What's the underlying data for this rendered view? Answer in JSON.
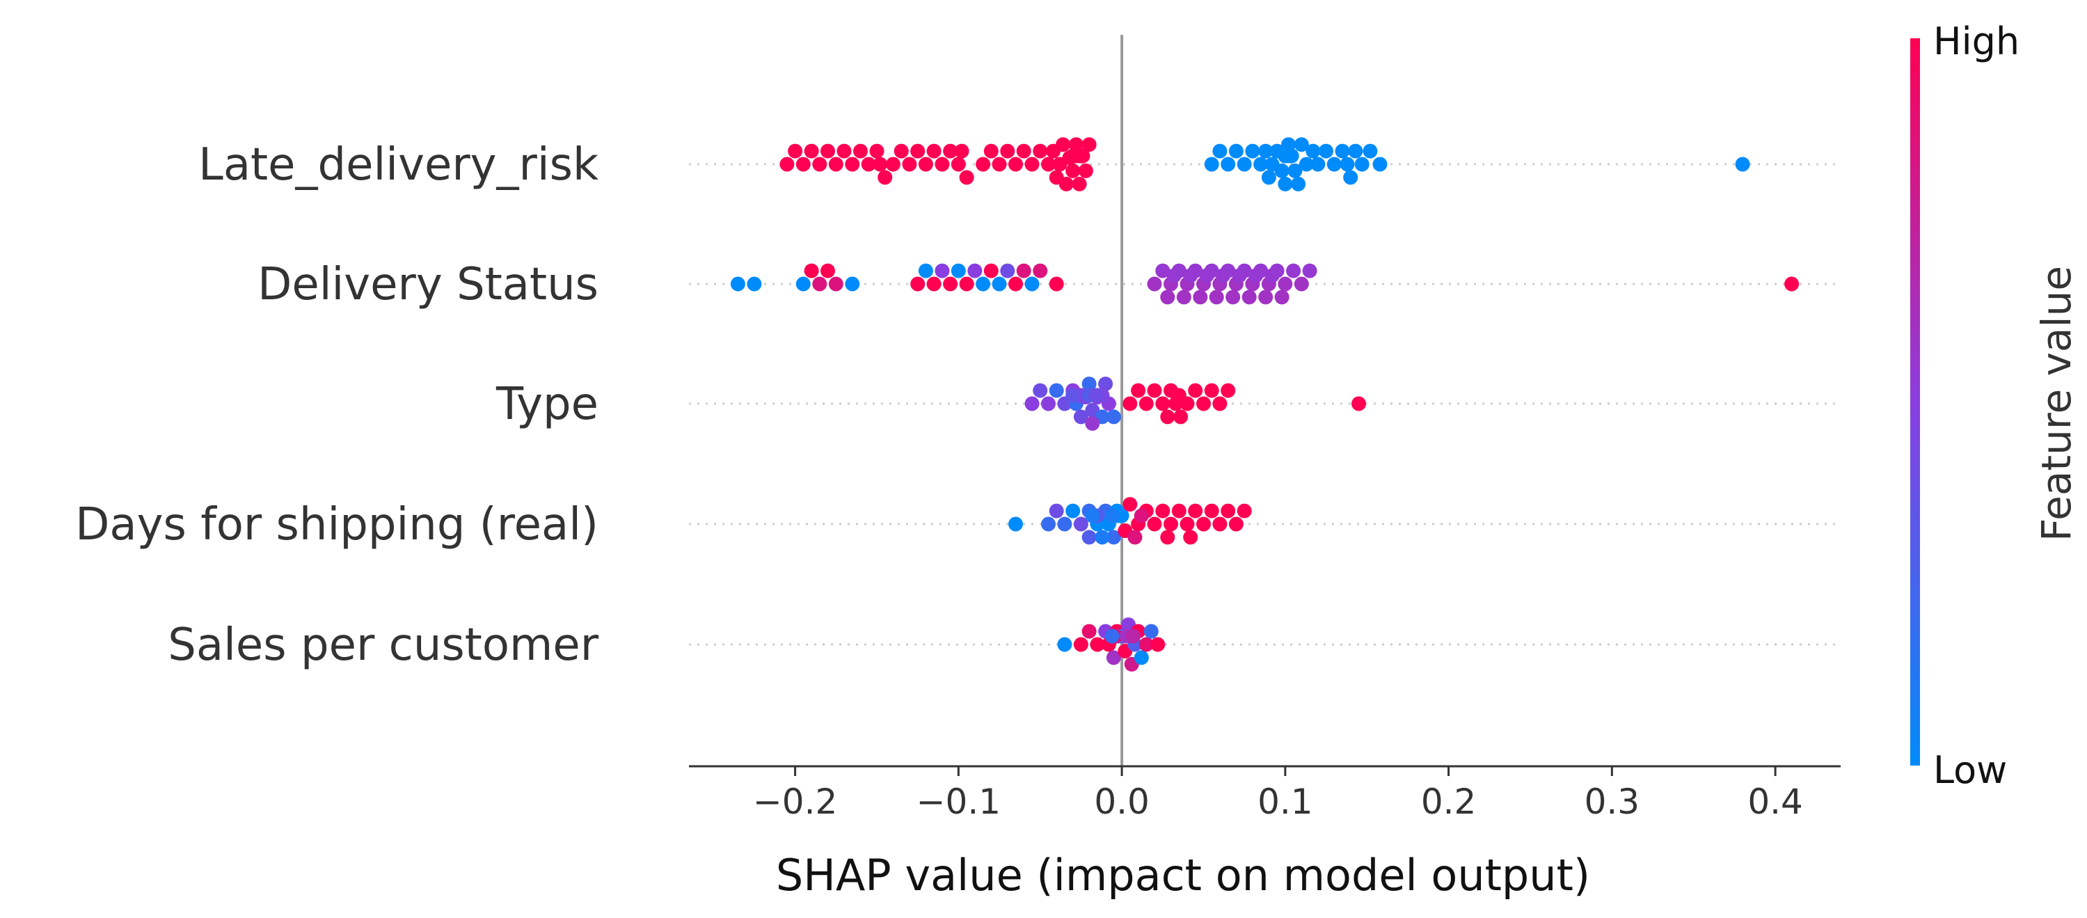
{
  "chart_data": {
    "type": "scatter",
    "subtype": "shap-beeswarm",
    "title": "",
    "xlabel": "SHAP value (impact on model output)",
    "xlim": [
      -0.265,
      0.44
    ],
    "xticks": [
      -0.2,
      -0.1,
      0.0,
      0.1,
      0.2,
      0.3,
      0.4
    ],
    "xtick_labels": [
      "−0.2",
      "−0.1",
      "0.0",
      "0.1",
      "0.2",
      "0.3",
      "0.4"
    ],
    "colorbar": {
      "title": "Feature value",
      "high_label": "High",
      "low_label": "Low",
      "high_color": "#ff0052",
      "low_color": "#008bfb"
    },
    "features": [
      {
        "name": "Late_delivery_risk",
        "points": [
          [
            -0.205,
            1
          ],
          [
            -0.2,
            1
          ],
          [
            -0.195,
            1
          ],
          [
            -0.19,
            1
          ],
          [
            -0.185,
            1
          ],
          [
            -0.18,
            1
          ],
          [
            -0.175,
            1
          ],
          [
            -0.17,
            1
          ],
          [
            -0.165,
            1
          ],
          [
            -0.16,
            1
          ],
          [
            -0.155,
            1
          ],
          [
            -0.15,
            1
          ],
          [
            -0.148,
            1
          ],
          [
            -0.145,
            1
          ],
          [
            -0.14,
            1
          ],
          [
            -0.135,
            1
          ],
          [
            -0.13,
            1
          ],
          [
            -0.125,
            1
          ],
          [
            -0.12,
            1
          ],
          [
            -0.115,
            1
          ],
          [
            -0.11,
            1
          ],
          [
            -0.105,
            1
          ],
          [
            -0.1,
            1
          ],
          [
            -0.098,
            1
          ],
          [
            -0.095,
            1
          ],
          [
            -0.085,
            1
          ],
          [
            -0.08,
            1
          ],
          [
            -0.075,
            1
          ],
          [
            -0.07,
            1
          ],
          [
            -0.065,
            1
          ],
          [
            -0.06,
            1
          ],
          [
            -0.055,
            1
          ],
          [
            -0.05,
            1
          ],
          [
            -0.045,
            1
          ],
          [
            -0.042,
            1
          ],
          [
            -0.04,
            1
          ],
          [
            -0.038,
            1
          ],
          [
            -0.036,
            1
          ],
          [
            -0.034,
            1
          ],
          [
            -0.032,
            1
          ],
          [
            -0.03,
            1
          ],
          [
            -0.03,
            1
          ],
          [
            -0.028,
            1
          ],
          [
            -0.028,
            1
          ],
          [
            -0.026,
            1
          ],
          [
            -0.026,
            1
          ],
          [
            -0.025,
            1
          ],
          [
            -0.025,
            1
          ],
          [
            -0.024,
            1
          ],
          [
            -0.024,
            1
          ],
          [
            -0.022,
            1
          ],
          [
            -0.02,
            1
          ],
          [
            0.055,
            0
          ],
          [
            0.06,
            0
          ],
          [
            0.065,
            0
          ],
          [
            0.07,
            0
          ],
          [
            0.075,
            0
          ],
          [
            0.08,
            0
          ],
          [
            0.085,
            0
          ],
          [
            0.088,
            0
          ],
          [
            0.09,
            0
          ],
          [
            0.092,
            0
          ],
          [
            0.095,
            0
          ],
          [
            0.098,
            0
          ],
          [
            0.1,
            0
          ],
          [
            0.1,
            0
          ],
          [
            0.102,
            0
          ],
          [
            0.102,
            0
          ],
          [
            0.104,
            0
          ],
          [
            0.106,
            0
          ],
          [
            0.108,
            0
          ],
          [
            0.11,
            0
          ],
          [
            0.113,
            0
          ],
          [
            0.117,
            0
          ],
          [
            0.12,
            0
          ],
          [
            0.125,
            0
          ],
          [
            0.13,
            0
          ],
          [
            0.135,
            0
          ],
          [
            0.138,
            0
          ],
          [
            0.14,
            0
          ],
          [
            0.143,
            0
          ],
          [
            0.147,
            0
          ],
          [
            0.152,
            0
          ],
          [
            0.158,
            0
          ],
          [
            0.38,
            0
          ]
        ]
      },
      {
        "name": "Delivery Status",
        "points": [
          [
            -0.235,
            0
          ],
          [
            -0.225,
            0
          ],
          [
            -0.195,
            0
          ],
          [
            -0.19,
            1
          ],
          [
            -0.185,
            0.85
          ],
          [
            -0.18,
            1
          ],
          [
            -0.175,
            0.85
          ],
          [
            -0.165,
            0
          ],
          [
            -0.125,
            1
          ],
          [
            -0.12,
            0
          ],
          [
            -0.115,
            1
          ],
          [
            -0.11,
            0.5
          ],
          [
            -0.105,
            1
          ],
          [
            -0.1,
            0
          ],
          [
            -0.095,
            1
          ],
          [
            -0.09,
            0.5
          ],
          [
            -0.085,
            0
          ],
          [
            -0.08,
            1
          ],
          [
            -0.075,
            0
          ],
          [
            -0.07,
            0.4
          ],
          [
            -0.065,
            1
          ],
          [
            -0.06,
            0.85
          ],
          [
            -0.055,
            0
          ],
          [
            -0.05,
            0.85
          ],
          [
            -0.04,
            1
          ],
          [
            0.02,
            0.6
          ],
          [
            0.025,
            0.55
          ],
          [
            0.03,
            0.6
          ],
          [
            0.035,
            0.55
          ],
          [
            0.04,
            0.6
          ],
          [
            0.045,
            0.55
          ],
          [
            0.05,
            0.6
          ],
          [
            0.055,
            0.55
          ],
          [
            0.06,
            0.6
          ],
          [
            0.065,
            0.55
          ],
          [
            0.07,
            0.6
          ],
          [
            0.075,
            0.55
          ],
          [
            0.08,
            0.6
          ],
          [
            0.085,
            0.55
          ],
          [
            0.09,
            0.6
          ],
          [
            0.095,
            0.55
          ],
          [
            0.1,
            0.6
          ],
          [
            0.105,
            0.55
          ],
          [
            0.11,
            0.6
          ],
          [
            0.115,
            0.55
          ],
          [
            0.028,
            0.6
          ],
          [
            0.032,
            0.55
          ],
          [
            0.038,
            0.6
          ],
          [
            0.042,
            0.55
          ],
          [
            0.048,
            0.6
          ],
          [
            0.052,
            0.55
          ],
          [
            0.058,
            0.6
          ],
          [
            0.062,
            0.55
          ],
          [
            0.068,
            0.6
          ],
          [
            0.072,
            0.55
          ],
          [
            0.078,
            0.6
          ],
          [
            0.082,
            0.55
          ],
          [
            0.088,
            0.6
          ],
          [
            0.092,
            0.55
          ],
          [
            0.098,
            0.6
          ],
          [
            0.41,
            1
          ]
        ]
      },
      {
        "name": "Type",
        "points": [
          [
            -0.055,
            0.5
          ],
          [
            -0.05,
            0.4
          ],
          [
            -0.045,
            0.5
          ],
          [
            -0.04,
            0.2
          ],
          [
            -0.035,
            0.4
          ],
          [
            -0.03,
            0.5
          ],
          [
            -0.028,
            0.2
          ],
          [
            -0.025,
            0.4
          ],
          [
            -0.022,
            0.5
          ],
          [
            -0.02,
            0.2
          ],
          [
            -0.018,
            0.4
          ],
          [
            -0.015,
            0.5
          ],
          [
            -0.012,
            0.2
          ],
          [
            -0.01,
            0.4
          ],
          [
            -0.008,
            0.5
          ],
          [
            -0.005,
            0.2
          ],
          [
            -0.025,
            0.45
          ],
          [
            -0.02,
            0.35
          ],
          [
            -0.015,
            0.45
          ],
          [
            -0.03,
            0.35
          ],
          [
            -0.018,
            0.55
          ],
          [
            -0.012,
            0.45
          ],
          [
            -0.02,
            0.3
          ],
          [
            -0.016,
            0.4
          ],
          [
            0.005,
            1
          ],
          [
            0.01,
            1
          ],
          [
            0.015,
            1
          ],
          [
            0.02,
            1
          ],
          [
            0.025,
            1
          ],
          [
            0.03,
            1
          ],
          [
            0.033,
            1
          ],
          [
            0.036,
            1
          ],
          [
            0.04,
            1
          ],
          [
            0.045,
            1
          ],
          [
            0.05,
            1
          ],
          [
            0.055,
            1
          ],
          [
            0.06,
            1
          ],
          [
            0.065,
            1
          ],
          [
            0.028,
            1
          ],
          [
            0.035,
            1
          ],
          [
            0.145,
            1
          ]
        ]
      },
      {
        "name": "Days for shipping (real)",
        "points": [
          [
            -0.065,
            0
          ],
          [
            -0.045,
            0.2
          ],
          [
            -0.04,
            0.4
          ],
          [
            -0.035,
            0.2
          ],
          [
            -0.03,
            0
          ],
          [
            -0.025,
            0.4
          ],
          [
            -0.02,
            0.2
          ],
          [
            -0.015,
            0
          ],
          [
            -0.01,
            0.2
          ],
          [
            -0.008,
            0
          ],
          [
            -0.005,
            0.2
          ],
          [
            -0.003,
            0
          ],
          [
            -0.002,
            0
          ],
          [
            -0.001,
            0
          ],
          [
            0.0,
            0
          ],
          [
            -0.02,
            0.3
          ],
          [
            -0.015,
            0.3
          ],
          [
            -0.012,
            0.1
          ],
          [
            -0.018,
            0.1
          ],
          [
            -0.006,
            0.1
          ],
          [
            0.002,
            1
          ],
          [
            0.005,
            1
          ],
          [
            0.01,
            1
          ],
          [
            0.015,
            1
          ],
          [
            0.02,
            1
          ],
          [
            0.025,
            1
          ],
          [
            0.03,
            1
          ],
          [
            0.035,
            1
          ],
          [
            0.04,
            1
          ],
          [
            0.045,
            1
          ],
          [
            0.05,
            1
          ],
          [
            0.055,
            1
          ],
          [
            0.06,
            1
          ],
          [
            0.065,
            1
          ],
          [
            0.07,
            1
          ],
          [
            0.075,
            1
          ],
          [
            0.008,
            0.85
          ],
          [
            0.012,
            0.85
          ],
          [
            0.028,
            1
          ],
          [
            0.042,
            1
          ]
        ]
      },
      {
        "name": "Sales per customer",
        "points": [
          [
            -0.035,
            0
          ],
          [
            -0.025,
            1
          ],
          [
            -0.02,
            0.9
          ],
          [
            -0.015,
            1
          ],
          [
            -0.01,
            0.5
          ],
          [
            -0.008,
            1
          ],
          [
            -0.005,
            0.6
          ],
          [
            -0.003,
            1
          ],
          [
            -0.002,
            0.4
          ],
          [
            0.0,
            0.7
          ],
          [
            0.0,
            0.3
          ],
          [
            0.002,
            1
          ],
          [
            0.004,
            0.5
          ],
          [
            0.006,
            0.8
          ],
          [
            0.008,
            0.3
          ],
          [
            0.01,
            1
          ],
          [
            0.012,
            0
          ],
          [
            0.015,
            0.9
          ],
          [
            0.018,
            0.2
          ],
          [
            0.022,
            1
          ],
          [
            -0.004,
            0.9
          ],
          [
            0.003,
            0.6
          ],
          [
            -0.006,
            0.2
          ],
          [
            0.007,
            0.7
          ]
        ]
      }
    ]
  }
}
